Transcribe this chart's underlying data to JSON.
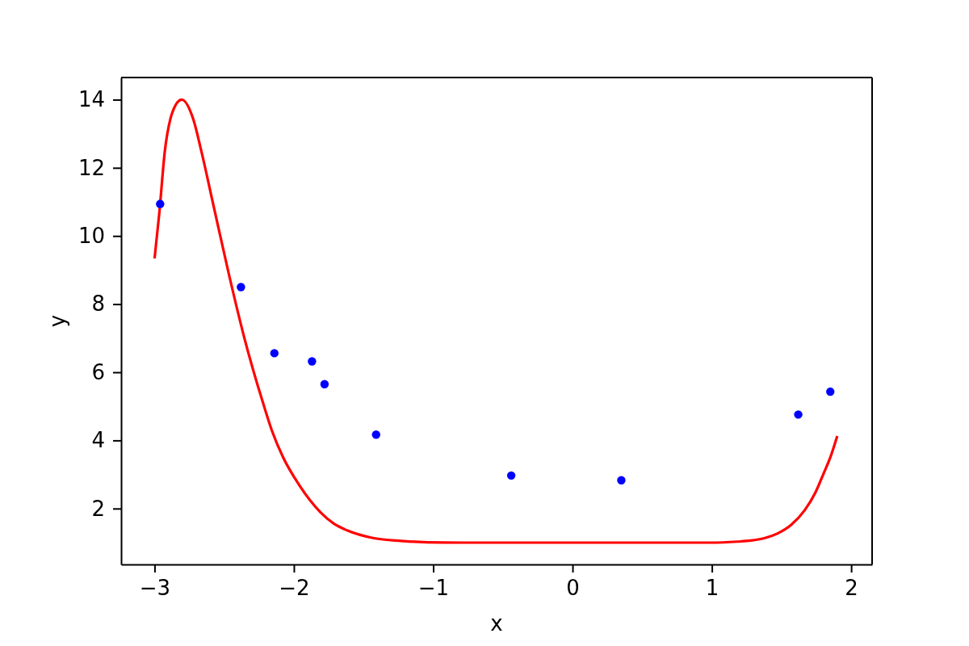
{
  "chart_data": {
    "type": "scatter",
    "xlabel": "x",
    "ylabel": "y",
    "xlim": [
      -3.24,
      2.15
    ],
    "ylim": [
      0.36,
      14.65
    ],
    "xticks": [
      {
        "value": -3,
        "label": "−3"
      },
      {
        "value": -2,
        "label": "−2"
      },
      {
        "value": -1,
        "label": "−1"
      },
      0,
      1,
      2
    ],
    "yticks": [
      2,
      4,
      6,
      8,
      10,
      12,
      14
    ],
    "series": [
      {
        "color": "#0000ff",
        "marker": "circle",
        "x": [
          -2.96,
          -2.38,
          -2.14,
          -1.87,
          -1.78,
          -1.41,
          -0.44,
          0.35,
          1.62,
          1.85
        ],
        "values": [
          10.94,
          8.5,
          6.56,
          6.32,
          5.65,
          4.17,
          2.97,
          2.83,
          4.76,
          5.43
        ]
      },
      {
        "type": "line",
        "color": "#ff0000",
        "line_style": "solid",
        "x": [
          -3.0,
          -2.966,
          -2.926,
          -2.888,
          -2.873,
          -2.805,
          -2.721,
          -2.665,
          -2.565,
          -2.465,
          -2.357,
          -2.22,
          -2.158,
          -2.077,
          -1.965,
          -1.811,
          -1.714,
          -1.618,
          -1.425,
          -1.231,
          -1.038,
          -0.8,
          -0.6,
          -0.4,
          -0.2,
          0,
          0.2,
          0.4,
          0.6,
          0.8,
          0.988,
          1.183,
          1.279,
          1.376,
          1.472,
          1.569,
          1.666,
          1.743,
          1.801,
          1.849,
          1.9
        ],
        "values": [
          9.34,
          10.67,
          12.5,
          13.41,
          13.62,
          14.0,
          13.41,
          12.5,
          10.67,
          8.85,
          7.03,
          5.08,
          4.29,
          3.5,
          2.71,
          1.9,
          1.56,
          1.36,
          1.13,
          1.05,
          1.01,
          1.0,
          1.0,
          1.0,
          1.0,
          1.0,
          1.0,
          1.0,
          1.0,
          1.0,
          1.0,
          1.03,
          1.06,
          1.13,
          1.27,
          1.52,
          1.95,
          2.47,
          3.02,
          3.49,
          4.13
        ]
      }
    ]
  }
}
